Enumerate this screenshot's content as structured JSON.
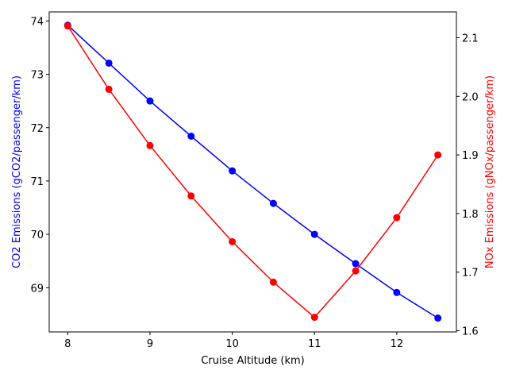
{
  "chart_data": {
    "type": "line",
    "x": [
      8,
      8.5,
      9,
      9.5,
      10,
      10.5,
      11,
      11.5,
      12,
      12.5
    ],
    "xlabel": "Cruise Altitude (km)",
    "xlim": [
      7.775,
      12.725
    ],
    "xticks": [
      8,
      9,
      10,
      11,
      12
    ],
    "series": [
      {
        "axis": "left",
        "color": "#0000ff",
        "values": [
          73.92,
          73.21,
          72.5,
          71.84,
          71.19,
          70.58,
          70.0,
          69.45,
          68.91,
          68.43
        ]
      },
      {
        "axis": "right",
        "color": "#ff0000",
        "values": [
          2.12,
          2.012,
          1.916,
          1.83,
          1.752,
          1.683,
          1.623,
          1.702,
          1.793,
          1.9
        ]
      }
    ],
    "y_left": {
      "label": "CO2 Emissions (gCO2/passenger/km)",
      "color": "#0000ff",
      "lim": [
        68.17,
        74.17
      ],
      "ticks": [
        69,
        70,
        71,
        72,
        73,
        74
      ]
    },
    "y_right": {
      "label": "NOx Emissions (gNOx/passenger/km)",
      "color": "#ff0000",
      "lim": [
        1.598,
        2.144
      ],
      "ticks": [
        1.6,
        1.7,
        1.8,
        1.9,
        2.0,
        2.1
      ],
      "tick_labels": [
        "1.6",
        "1.7",
        "1.8",
        "1.9",
        "2.0",
        "2.1"
      ]
    }
  }
}
